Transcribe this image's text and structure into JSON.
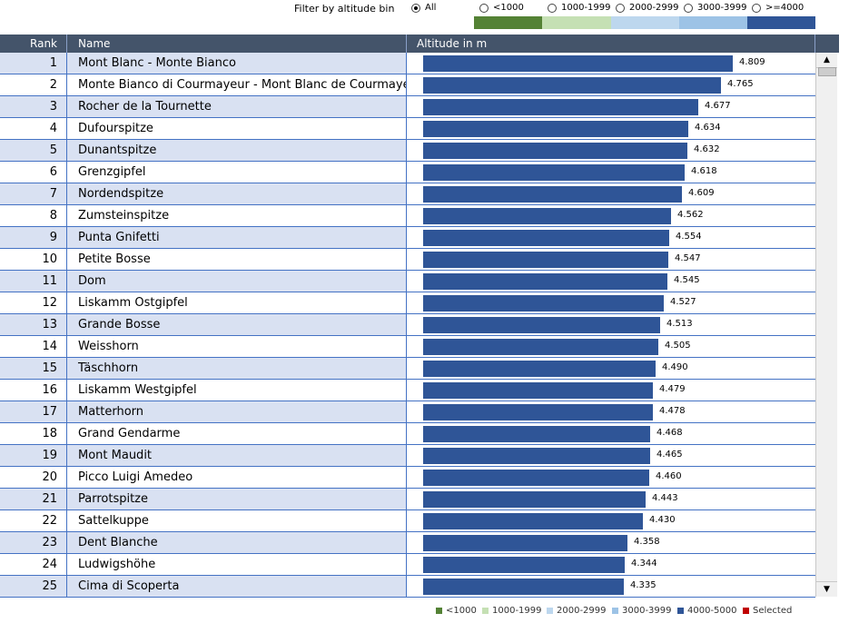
{
  "filter": {
    "label": "Filter by altitude bin",
    "options": [
      {
        "label": "All",
        "checked": true
      },
      {
        "label": "<1000",
        "checked": false
      },
      {
        "label": "1000-1999",
        "checked": false
      },
      {
        "label": "2000-2999",
        "checked": false
      },
      {
        "label": "3000-3999",
        "checked": false
      },
      {
        "label": ">=4000",
        "checked": false
      }
    ],
    "bin_colors": [
      "#548235",
      "#c5e0b4",
      "#bdd7ee",
      "#9dc3e6",
      "#2f5597"
    ]
  },
  "table": {
    "headers": {
      "rank": "Rank",
      "name": "Name",
      "altitude": "Altitude in m"
    },
    "max_value": 4.809,
    "rows": [
      {
        "rank": "1",
        "name": "Mont Blanc - Monte Bianco",
        "value": 4.809,
        "value_label": "4.809"
      },
      {
        "rank": "2",
        "name": "Monte Bianco di Courmayeur - Mont Blanc de Courmayer",
        "value": 4.765,
        "value_label": "4.765"
      },
      {
        "rank": "3",
        "name": "Rocher de la Tournette",
        "value": 4.677,
        "value_label": "4.677"
      },
      {
        "rank": "4",
        "name": "Dufourspitze",
        "value": 4.634,
        "value_label": "4.634"
      },
      {
        "rank": "5",
        "name": "Dunantspitze",
        "value": 4.632,
        "value_label": "4.632"
      },
      {
        "rank": "6",
        "name": "Grenzgipfel",
        "value": 4.618,
        "value_label": "4.618"
      },
      {
        "rank": "7",
        "name": "Nordendspitze",
        "value": 4.609,
        "value_label": "4.609"
      },
      {
        "rank": "8",
        "name": "Zumsteinspitze",
        "value": 4.562,
        "value_label": "4.562"
      },
      {
        "rank": "9",
        "name": "Punta Gnifetti",
        "value": 4.554,
        "value_label": "4.554"
      },
      {
        "rank": "10",
        "name": "Petite Bosse",
        "value": 4.547,
        "value_label": "4.547"
      },
      {
        "rank": "11",
        "name": "Dom",
        "value": 4.545,
        "value_label": "4.545"
      },
      {
        "rank": "12",
        "name": "Liskamm Ostgipfel",
        "value": 4.527,
        "value_label": "4.527"
      },
      {
        "rank": "13",
        "name": "Grande Bosse",
        "value": 4.513,
        "value_label": "4.513"
      },
      {
        "rank": "14",
        "name": "Weisshorn",
        "value": 4.505,
        "value_label": "4.505"
      },
      {
        "rank": "15",
        "name": "Täschhorn",
        "value": 4.49,
        "value_label": "4.490"
      },
      {
        "rank": "16",
        "name": "Liskamm Westgipfel",
        "value": 4.479,
        "value_label": "4.479"
      },
      {
        "rank": "17",
        "name": "Matterhorn",
        "value": 4.478,
        "value_label": "4.478"
      },
      {
        "rank": "18",
        "name": "Grand Gendarme",
        "value": 4.468,
        "value_label": "4.468"
      },
      {
        "rank": "19",
        "name": "Mont Maudit",
        "value": 4.465,
        "value_label": "4.465"
      },
      {
        "rank": "20",
        "name": "Picco Luigi Amedeo",
        "value": 4.46,
        "value_label": "4.460"
      },
      {
        "rank": "21",
        "name": "Parrotspitze",
        "value": 4.443,
        "value_label": "4.443"
      },
      {
        "rank": "22",
        "name": "Sattelkuppe",
        "value": 4.43,
        "value_label": "4.430"
      },
      {
        "rank": "23",
        "name": "Dent Blanche",
        "value": 4.358,
        "value_label": "4.358"
      },
      {
        "rank": "24",
        "name": "Ludwigshöhe",
        "value": 4.344,
        "value_label": "4.344"
      },
      {
        "rank": "25",
        "name": "Cima di Scoperta",
        "value": 4.335,
        "value_label": "4.335"
      }
    ]
  },
  "scrollbar": {
    "up_icon": "scroll-up-arrow-icon",
    "down_icon": "scroll-down-arrow-icon"
  },
  "legend": [
    {
      "label": "<1000",
      "color": "#548235"
    },
    {
      "label": "1000-1999",
      "color": "#c5e0b4"
    },
    {
      "label": "2000-2999",
      "color": "#bdd7ee"
    },
    {
      "label": "3000-3999",
      "color": "#9dc3e6"
    },
    {
      "label": "4000-5000",
      "color": "#2f5597"
    },
    {
      "label": "Selected",
      "color": "#c00000"
    }
  ],
  "bar_color": "#2f5597",
  "colors": {
    "header_bg": "#44546a",
    "row_alt": "#d9e1f2",
    "border": "#4472c4"
  }
}
